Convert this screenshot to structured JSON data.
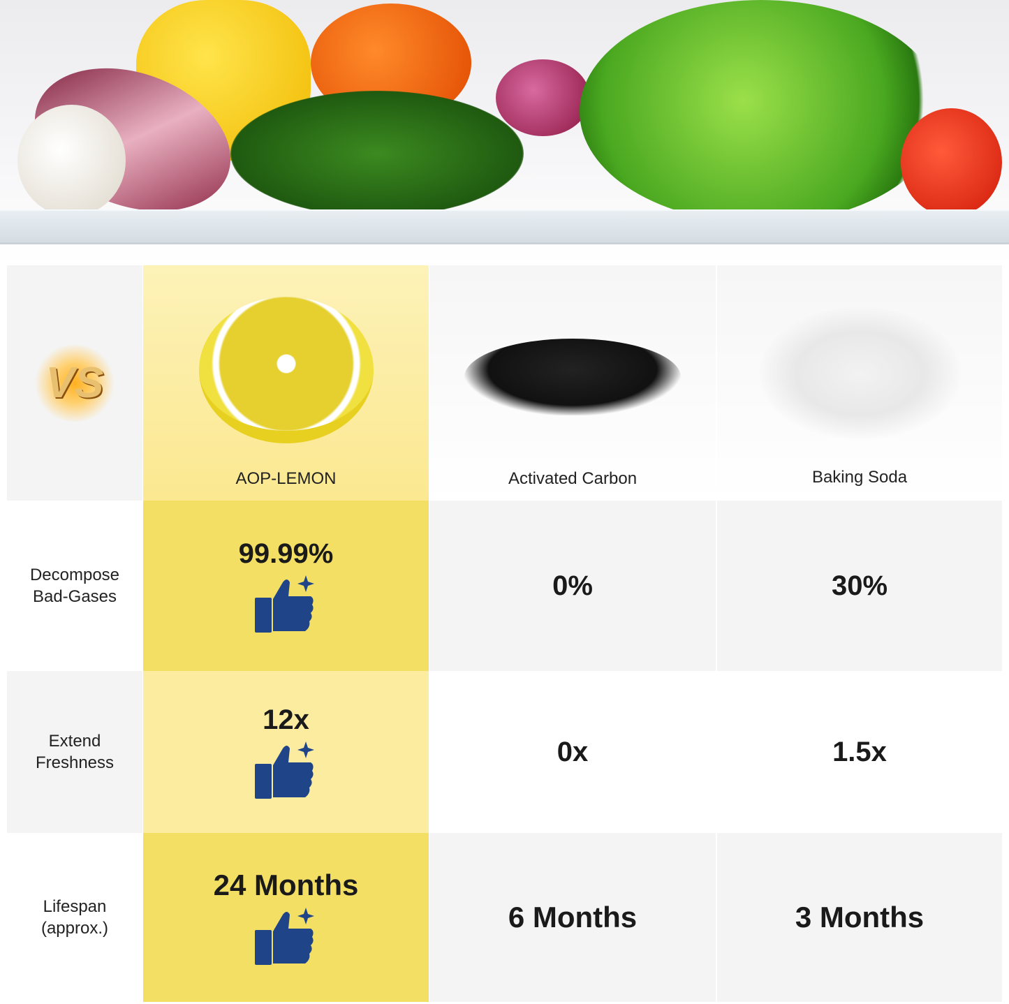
{
  "columns": [
    {
      "name": "AOP-LEMON",
      "highlight": true
    },
    {
      "name": "Activated Carbon"
    },
    {
      "name": "Baking Soda"
    }
  ],
  "vs_logo": "VS",
  "rows": [
    {
      "label_1": "Decompose",
      "label_2": "Bad-Gases",
      "values": [
        "99.99%",
        "0%",
        "30%"
      ]
    },
    {
      "label_1": "Extend",
      "label_2": "Freshness",
      "values": [
        "12x",
        "0x",
        "1.5x"
      ]
    },
    {
      "label_1": "Lifespan",
      "label_2": "(approx.)",
      "values": [
        "24 Months",
        "6 Months",
        "3 Months"
      ]
    }
  ],
  "colors": {
    "highlight_dark": "#f3df63",
    "highlight_light": "#fbeca0",
    "thumb": "#1f4488",
    "grey": "#f4f4f4"
  },
  "icons": [
    "thumbs-up-sparkle-icon"
  ]
}
